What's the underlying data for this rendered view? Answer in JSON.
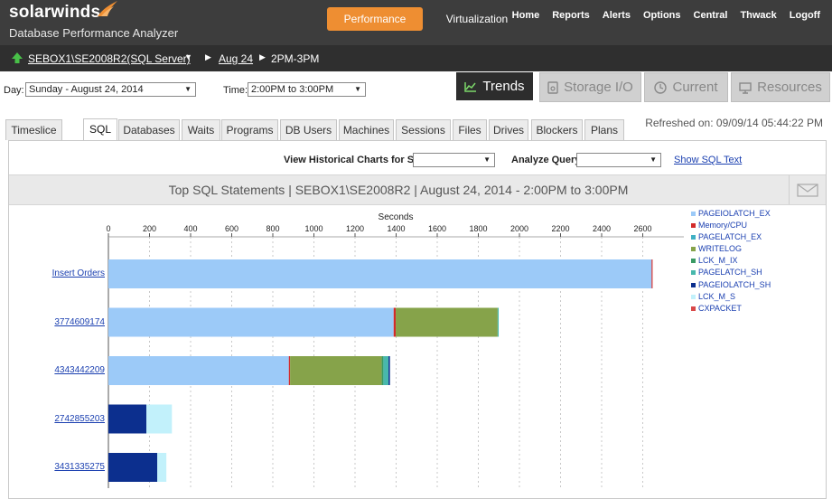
{
  "header": {
    "brand": "solarwinds",
    "product": "Database Performance Analyzer",
    "nav": {
      "performance": "Performance",
      "virtualization": "Virtualization"
    },
    "links": [
      "Home",
      "Reports",
      "Alerts",
      "Options",
      "Central",
      "Thwack",
      "Logoff"
    ]
  },
  "breadcrumb": {
    "server": "SEBOX1\\SE2008R2(SQL Server)",
    "date": "Aug 24",
    "time": "2PM-3PM"
  },
  "controls": {
    "day_label": "Day:",
    "day_value": "Sunday - August 24, 2014",
    "time_label": "Time:",
    "time_value": "2:00PM to 3:00PM"
  },
  "view_tabs": {
    "trends": "Trends",
    "storage": "Storage I/O",
    "current": "Current",
    "resources": "Resources"
  },
  "sub_tabs": [
    "Timeslice",
    "SQL",
    "Databases",
    "Waits",
    "Programs",
    "DB Users",
    "Machines",
    "Sessions",
    "Files",
    "Drives",
    "Blockers",
    "Plans"
  ],
  "refreshed": "Refreshed on: 09/09/14 05:44:22 PM",
  "filters": {
    "historical_label": "View Historical Charts for SQL:",
    "analyze_label": "Analyze Query:",
    "show_sql": "Show SQL Text"
  },
  "colors": {
    "accent": "#ee8e32",
    "PAGEIOLATCH_EX": "#9ccaf8",
    "Memory/CPU": "#d32b2b",
    "PAGELATCH_EX": "#40b0c4",
    "WRITELOG": "#86a34a",
    "LCK_M_IX": "#3a9a64",
    "PAGELATCH_SH": "#48b8ac",
    "PAGEIOLATCH_SH": "#0c2f8e",
    "LCK_M_S": "#c2f1fb",
    "CXPACKET": "#d94848"
  },
  "chart_data": {
    "type": "bar",
    "orientation": "horizontal",
    "stacked": true,
    "title": "Top SQL Statements | SEBOX1\\SE2008R2 | August 24, 2014 - 2:00PM to 3:00PM",
    "xlabel": "Seconds",
    "xlim": [
      0,
      2800
    ],
    "xticks": [
      "0",
      "200",
      "400",
      "600",
      "800",
      "1000",
      "1200",
      "1400",
      "1600",
      "1800",
      "2000",
      "2200",
      "2400",
      "2600"
    ],
    "grid": true,
    "legend_position": "right",
    "categories": [
      "Insert Orders",
      "3774609174",
      "4343442209",
      "2742855203",
      "3431335275"
    ],
    "series": [
      {
        "name": "PAGEIOLATCH_EX",
        "values": [
          2643,
          1388,
          878,
          0,
          0
        ]
      },
      {
        "name": "Memory/CPU",
        "values": [
          5,
          10,
          6,
          0,
          0
        ]
      },
      {
        "name": "PAGELATCH_EX",
        "values": [
          0,
          0,
          0,
          0,
          0
        ]
      },
      {
        "name": "WRITELOG",
        "values": [
          0,
          496,
          446,
          0,
          0
        ]
      },
      {
        "name": "LCK_M_IX",
        "values": [
          0,
          0,
          8,
          0,
          0
        ]
      },
      {
        "name": "PAGELATCH_SH",
        "values": [
          0,
          5,
          25,
          0,
          0
        ]
      },
      {
        "name": "PAGEIOLATCH_SH",
        "values": [
          0,
          0,
          7,
          185,
          238
        ]
      },
      {
        "name": "LCK_M_S",
        "values": [
          0,
          0,
          0,
          124,
          44
        ]
      },
      {
        "name": "CXPACKET",
        "values": [
          0,
          0,
          0,
          0,
          0
        ]
      }
    ]
  }
}
